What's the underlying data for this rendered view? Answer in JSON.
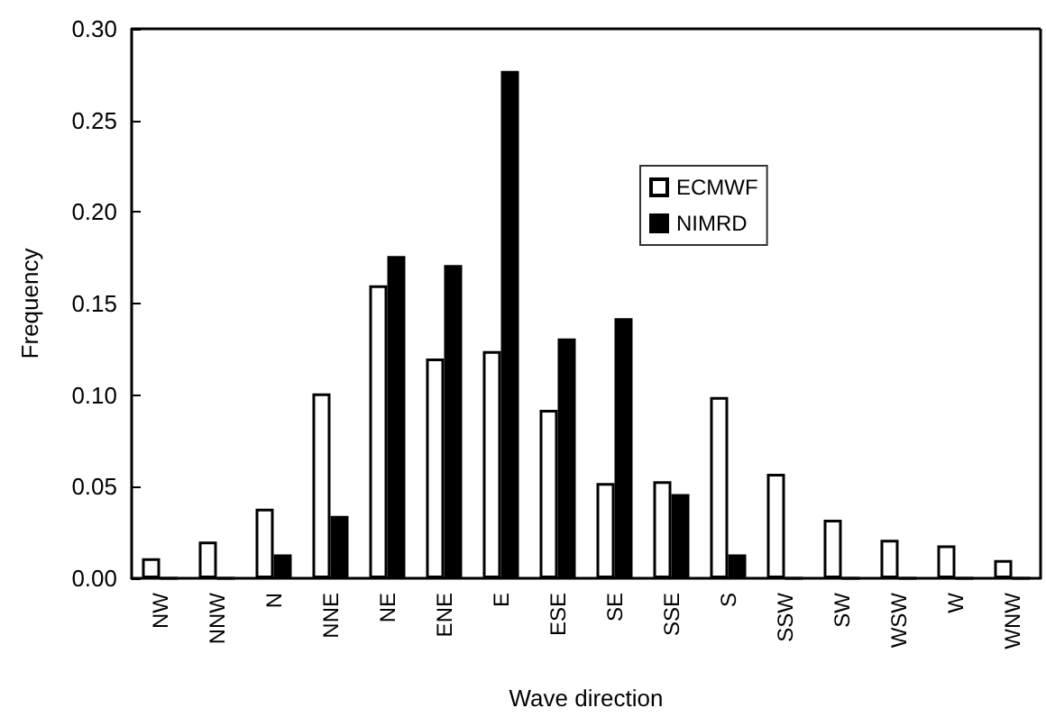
{
  "chart_data": {
    "type": "bar",
    "xlabel": "Wave direction",
    "ylabel": "Frequency",
    "categories": [
      "NW",
      "NNW",
      "N",
      "NNE",
      "NE",
      "ENE",
      "E",
      "ESE",
      "SE",
      "SSE",
      "S",
      "SSW",
      "SW",
      "WSW",
      "W",
      "WNW"
    ],
    "series": [
      {
        "name": "ECMWF",
        "color": "#ffffff",
        "values": [
          0.011,
          0.02,
          0.038,
          0.101,
          0.16,
          0.12,
          0.124,
          0.092,
          0.052,
          0.053,
          0.099,
          0.057,
          0.032,
          0.021,
          0.018,
          0.01
        ]
      },
      {
        "name": "NIMRD",
        "color": "#000000",
        "values": [
          0,
          0,
          0.013,
          0.034,
          0.176,
          0.171,
          0.277,
          0.131,
          0.142,
          0.046,
          0.013,
          0,
          0,
          0,
          0,
          0
        ]
      }
    ],
    "ylim": [
      0,
      0.3
    ],
    "yticks": [
      {
        "value": 0,
        "label": "0.00"
      },
      {
        "value": 0.05,
        "label": "0.05"
      },
      {
        "value": 0.1,
        "label": "0.10"
      },
      {
        "value": 0.15,
        "label": "0.15"
      },
      {
        "value": 0.2,
        "label": "0.20"
      },
      {
        "value": 0.25,
        "label": "0.25"
      },
      {
        "value": 0.3,
        "label": "0.30"
      }
    ],
    "grid": false,
    "legend": "top"
  }
}
